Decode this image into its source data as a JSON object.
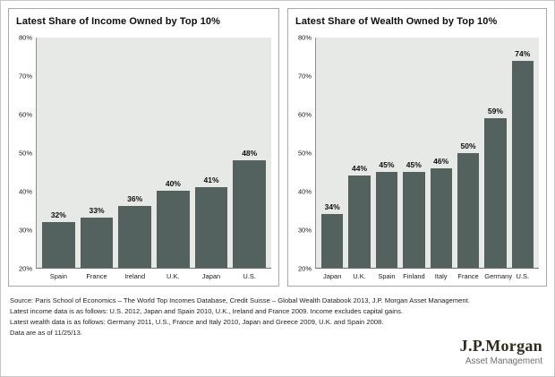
{
  "chart_data": [
    {
      "type": "bar",
      "title": "Latest Share of Income Owned by Top 10%",
      "categories": [
        "Spain",
        "France",
        "Ireland",
        "U.K.",
        "Japan",
        "U.S."
      ],
      "values": [
        32,
        33,
        36,
        40,
        41,
        48
      ],
      "value_labels": [
        "32%",
        "33%",
        "36%",
        "40%",
        "41%",
        "48%"
      ],
      "xlabel": "",
      "ylabel": "",
      "ylim": [
        20,
        80
      ],
      "yticks": [
        20,
        30,
        40,
        50,
        60,
        70,
        80
      ],
      "ytick_suffix": "%",
      "grid": false,
      "legend": "none",
      "bar_color": "#53615f",
      "plot_bg": "#e6e9e6"
    },
    {
      "type": "bar",
      "title": "Latest Share of Wealth Owned by Top 10%",
      "categories": [
        "Japan",
        "U.K.",
        "Spain",
        "Finland",
        "Italy",
        "France",
        "Germany",
        "U.S."
      ],
      "values": [
        34,
        44,
        45,
        45,
        46,
        50,
        59,
        74
      ],
      "value_labels": [
        "34%",
        "44%",
        "45%",
        "45%",
        "46%",
        "50%",
        "59%",
        "74%"
      ],
      "xlabel": "",
      "ylabel": "",
      "ylim": [
        20,
        80
      ],
      "yticks": [
        20,
        30,
        40,
        50,
        60,
        70,
        80
      ],
      "ytick_suffix": "%",
      "grid": false,
      "legend": "none",
      "bar_color": "#53615f",
      "plot_bg": "#e6e9e6"
    }
  ],
  "footer": {
    "lines": [
      "Source: Paris School of Economics – The World Top Incomes Database, Credit Suisse – Global Wealth Databook 2013, J.P. Morgan Asset Management.",
      "Latest income data is as follows: U.S. 2012, Japan and Spain 2010, U.K., Ireland and France 2009. Income excludes capital gains.",
      "Latest wealth data is as follows: Germany 2011, U.S., France and Italy 2010, Japan and Greece 2009, U.K. and Spain 2008.",
      "Data are as of 11/25/13."
    ]
  },
  "logo": {
    "name": "J.P.Morgan",
    "subtitle": "Asset Management"
  },
  "colors": {
    "bar": "#53615f",
    "plot_bg": "#e6e9e6",
    "panel_border": "#a8a8a8",
    "logo_text": "#33291e"
  }
}
